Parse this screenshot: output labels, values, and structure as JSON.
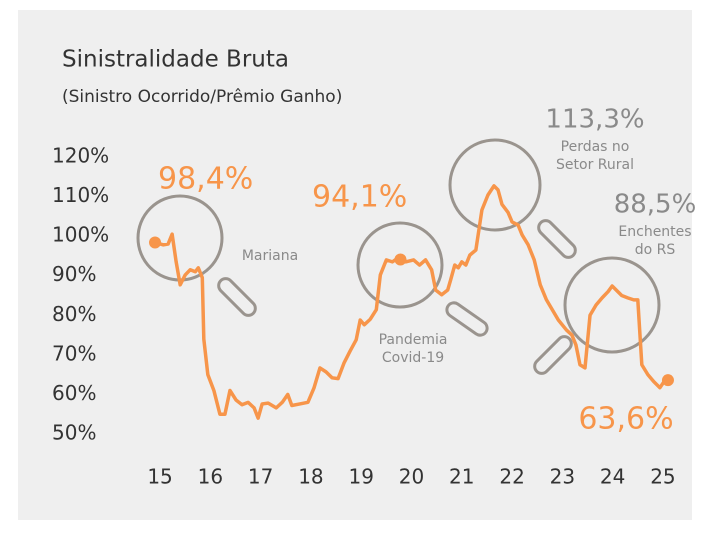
{
  "chart_data": {
    "type": "line",
    "title": "Sinistralidade Bruta",
    "subtitle": "(Sinistro Ocorrido/Prêmio Ganho)",
    "series": [
      {
        "color": "#f7954a",
        "x": [
          14.9,
          15.06,
          15.16,
          15.24,
          15.32,
          15.4,
          15.5,
          15.6,
          15.7,
          15.76,
          15.84,
          15.87,
          15.95,
          16.07,
          16.19,
          16.29,
          16.39,
          16.51,
          16.63,
          16.75,
          16.87,
          16.95,
          17.03,
          17.15,
          17.31,
          17.43,
          17.54,
          17.62,
          17.78,
          17.94,
          18.06,
          18.18,
          18.3,
          18.42,
          18.54,
          18.66,
          18.78,
          18.9,
          18.98,
          19.06,
          19.18,
          19.3,
          19.38,
          19.5,
          19.62,
          19.73,
          19.81,
          19.89,
          20.04,
          20.16,
          20.28,
          20.4,
          20.48,
          20.6,
          20.72,
          20.78,
          20.86,
          20.93,
          21.0,
          21.08,
          21.16,
          21.28,
          21.4,
          21.52,
          21.64,
          21.72,
          21.8,
          21.92,
          22.0,
          22.12,
          22.2,
          22.32,
          22.44,
          22.56,
          22.68,
          22.8,
          22.92,
          23.08,
          23.19,
          23.27,
          23.35,
          23.45,
          23.55,
          23.67,
          23.79,
          23.91,
          23.99,
          24.07,
          24.18,
          24.3,
          24.42,
          24.5,
          24.58,
          24.7,
          24.82,
          24.94,
          25.02,
          25.1
        ],
        "values": [
          98.4,
          97.8,
          98,
          100.5,
          93.5,
          87.7,
          90.2,
          91.5,
          91,
          92,
          89.5,
          74,
          65,
          61,
          55,
          55,
          61,
          58.6,
          57.4,
          58,
          56.6,
          54,
          57.6,
          57.8,
          56.6,
          58,
          60,
          57.2,
          57.6,
          58,
          61.6,
          66.7,
          65.7,
          64.2,
          64,
          68,
          71,
          73.8,
          78.8,
          77.6,
          79,
          81.4,
          90.2,
          94,
          93.5,
          94.5,
          95,
          93.5,
          94,
          92.7,
          94,
          91.5,
          86.4,
          85.2,
          86.4,
          89,
          92.7,
          92,
          93.5,
          92.7,
          95.2,
          96.5,
          106.6,
          110.4,
          112.7,
          111.7,
          108,
          106,
          103.6,
          102.8,
          100.3,
          97.8,
          94,
          87.7,
          84,
          81.4,
          78.8,
          76.3,
          75,
          72.5,
          67.5,
          66.7,
          80,
          82.6,
          84.4,
          86,
          87.4,
          86.4,
          85,
          84.4,
          83.9,
          83.9,
          67.5,
          65,
          63.2,
          61.7,
          63.2,
          63.6
        ]
      }
    ],
    "annotations": [
      {
        "label": "98,4%",
        "value": 98.4,
        "x": 14.9,
        "color": "#f7954a",
        "dot": true
      },
      {
        "label": "94,1%",
        "value": 94.1,
        "x": 19.78,
        "color": "#f7954a",
        "dot": true
      },
      {
        "label": "113,3%",
        "value": 113.3,
        "x": 21.66,
        "color": "#8a8a8a",
        "dot": false,
        "note": [
          "Perdas no",
          "Setor Rural"
        ]
      },
      {
        "label": "88,5%",
        "value": 88.5,
        "x": 24.0,
        "color": "#8a8a8a",
        "dot": false,
        "note": [
          "Enchentes",
          "do RS"
        ]
      },
      {
        "label": "63,6%",
        "value": 63.6,
        "x": 25.1,
        "color": "#f7954a",
        "dot": true
      }
    ],
    "events": [
      [
        "Mariana"
      ],
      [
        "Pandemia",
        "Covid-19"
      ]
    ],
    "xlim": [
      14.8,
      25.2
    ],
    "xticks": [
      15,
      16,
      17,
      18,
      19,
      20,
      21,
      22,
      23,
      24,
      25
    ],
    "ylim": [
      50,
      120
    ],
    "yticks": [
      {
        "value": 50,
        "label": "50%"
      },
      {
        "value": 60,
        "label": "60%"
      },
      {
        "value": 70,
        "label": "70%"
      },
      {
        "value": 80,
        "label": "80%"
      },
      {
        "value": 90,
        "label": "90%"
      },
      {
        "value": 100,
        "label": "100%"
      },
      {
        "value": 110,
        "label": "110%"
      },
      {
        "value": 120,
        "label": "120%"
      }
    ],
    "grid": false
  }
}
